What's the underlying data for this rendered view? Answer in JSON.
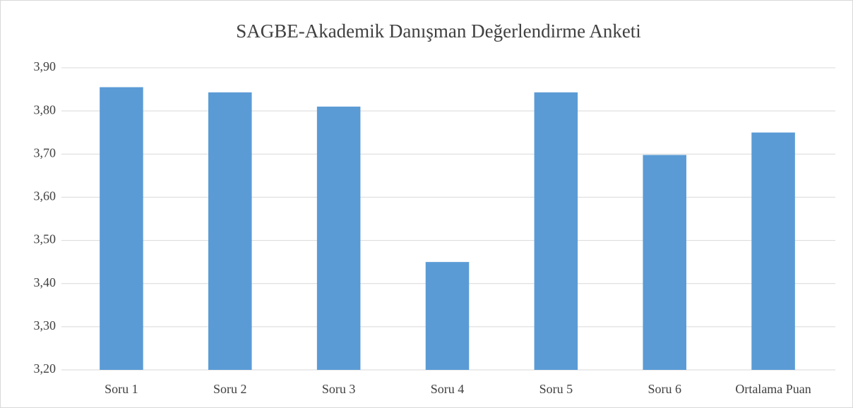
{
  "chart_data": {
    "type": "bar",
    "title": "SAGBE-Akademik Danışman Değerlendirme Anketi",
    "categories": [
      "Soru 1",
      "Soru 2",
      "Soru 3",
      "Soru 4",
      "Soru 5",
      "Soru 6",
      "Ortalama Puan"
    ],
    "values": [
      3.855,
      3.843,
      3.81,
      3.45,
      3.843,
      3.698,
      3.75
    ],
    "color": "#5b9bd5",
    "ylim": [
      3.2,
      3.9
    ],
    "yticks": [
      {
        "value": 3.2,
        "label": "3,20"
      },
      {
        "value": 3.3,
        "label": "3,30"
      },
      {
        "value": 3.4,
        "label": "3,40"
      },
      {
        "value": 3.5,
        "label": "3,50"
      },
      {
        "value": 3.6,
        "label": "3,60"
      },
      {
        "value": 3.7,
        "label": "3,70"
      },
      {
        "value": 3.8,
        "label": "3,80"
      },
      {
        "value": 3.9,
        "label": "3,90"
      }
    ],
    "grid": true
  }
}
